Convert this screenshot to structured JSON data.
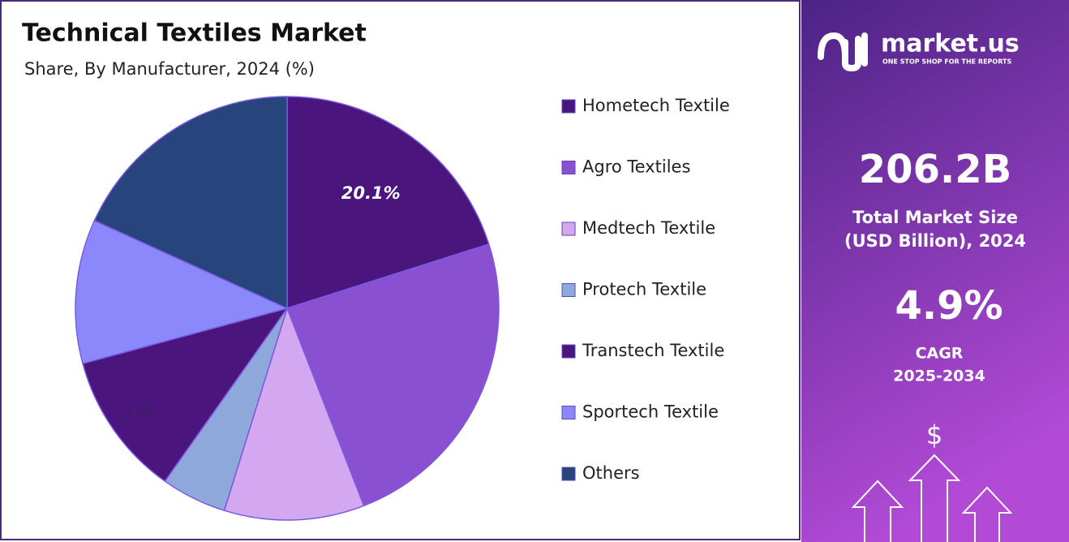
{
  "chart_data": {
    "type": "pie",
    "title": "Technical Textiles Market",
    "subtitle": "Share, By Manufacturer, 2024 (%)",
    "categories": [
      "Hometech Textile",
      "Agro Textiles",
      "Medtech Textile",
      "Protech Textile",
      "Transtech Textile",
      "Sportech Textile",
      "Others"
    ],
    "values": [
      20.1,
      24,
      10.7,
      5,
      11,
      11,
      18.2
    ],
    "value_labels": [
      "20.1%",
      null,
      null,
      null,
      "11%",
      null,
      null
    ],
    "colors": [
      "#4a167e",
      "#8a50d2",
      "#d4a8f0",
      "#8fa8dc",
      "#4a167e",
      "#8a88fa",
      "#27457c"
    ],
    "legend": "right"
  },
  "panel": {
    "brand": "market.us",
    "tagline": "ONE STOP SHOP FOR THE REPORTS",
    "market_size": "206.2B",
    "market_size_label": [
      "Total Market Size",
      "(USD Billion), 2024"
    ],
    "cagr": "4.9%",
    "cagr_label": [
      "CAGR",
      "2025-2034"
    ],
    "icon": "$"
  }
}
